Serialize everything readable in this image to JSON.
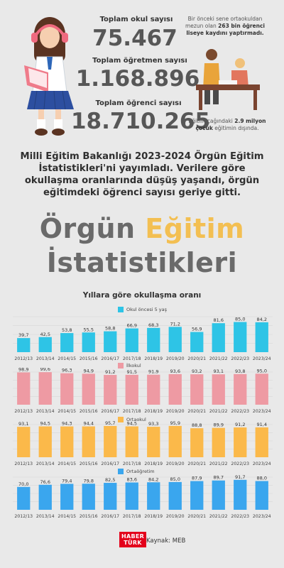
{
  "stats": {
    "school_label": "Toplam okul sayısı",
    "school_value": "75.467",
    "teacher_label": "Toplam öğretmen sayısı",
    "teacher_value": "1.168.896",
    "student_label": "Toplam öğrenci sayısı",
    "student_value": "18.710.265"
  },
  "notes": {
    "secondary_pre": "Bir önceki sene ortaokuldan mezun olan ",
    "secondary_bold": "263 bin öğrenci liseye kaydını yaptırmadı.",
    "out_pre": "Eğitim çağındaki ",
    "out_bold": "2.9 milyon çocuk",
    "out_post": " eğitimin dışında."
  },
  "headline": "Milli Eğitim Bakanlığı 2023-2024 Örgün Eğitim İstatistikleri'ni yayımladı. Verilere göre okullaşma oranlarında düşüş yaşandı, örgün eğitimdeki öğrenci sayısı geriye gitti.",
  "title": {
    "part1": "Örgün ",
    "part2": "Eğitim",
    "line2": "İstatistikleri"
  },
  "colors": {
    "accent": "#f3bf52",
    "preschool": "#2ec4e6",
    "primary": "#ee9aa3",
    "middle": "#fbb94a",
    "secondary": "#3aa6ee"
  },
  "footer": {
    "logo_line1": "HABER",
    "logo_line2": "TÜRK",
    "source": "Kaynak: MEB"
  },
  "chart_data": {
    "type": "bar",
    "title": "Yıllara göre okullaşma oranı",
    "categories": [
      "2012/13",
      "2013/14",
      "2014/15",
      "2015/16",
      "2016/17",
      "2017/18",
      "2018/19",
      "2019/20",
      "2020/21",
      "2021/22",
      "2022/23",
      "2023/24"
    ],
    "series": [
      {
        "name": "Okul öncesi 5 yaş",
        "color": "#2ec4e6",
        "values": [
          39.7,
          42.5,
          53.8,
          55.5,
          58.8,
          66.9,
          68.3,
          71.2,
          56.9,
          81.6,
          85.0,
          84.2
        ],
        "labels": [
          "39,7",
          "42,5",
          "53,8",
          "55,5",
          "58,8",
          "66,9",
          "68,3",
          "71,2",
          "56,9",
          "81,6",
          "85,0",
          "84,2"
        ]
      },
      {
        "name": "İlkokul",
        "color": "#ee9aa3",
        "values": [
          98.9,
          99.6,
          96.3,
          94.9,
          91.2,
          91.5,
          91.9,
          93.6,
          93.2,
          93.1,
          93.8,
          95.0
        ],
        "labels": [
          "98,9",
          "99,6",
          "96,3",
          "94,9",
          "91,2",
          "91,5",
          "91,9",
          "93,6",
          "93,2",
          "93,1",
          "93,8",
          "95,0"
        ]
      },
      {
        "name": "Ortaokul",
        "color": "#fbb94a",
        "values": [
          93.1,
          94.5,
          94.3,
          94.4,
          95.7,
          94.5,
          93.3,
          95.9,
          88.8,
          89.9,
          91.2,
          91.4
        ],
        "labels": [
          "93,1",
          "94,5",
          "94,3",
          "94,4",
          "95,7",
          "94,5",
          "93,3",
          "95,9",
          "88,8",
          "89,9",
          "91,2",
          "91,4"
        ]
      },
      {
        "name": "Ortaöğretim",
        "color": "#3aa6ee",
        "values": [
          70.0,
          76.6,
          79.4,
          79.8,
          82.5,
          83.6,
          84.2,
          85.0,
          87.9,
          89.7,
          91.7,
          88.0
        ],
        "labels": [
          "70,0",
          "76,6",
          "79,4",
          "79,8",
          "82,5",
          "83,6",
          "84,2",
          "85,0",
          "87,9",
          "89,7",
          "91,7",
          "88,0"
        ]
      }
    ],
    "ylim": [
      0,
      100
    ],
    "grid": true,
    "legend": "top-left of each panel"
  }
}
